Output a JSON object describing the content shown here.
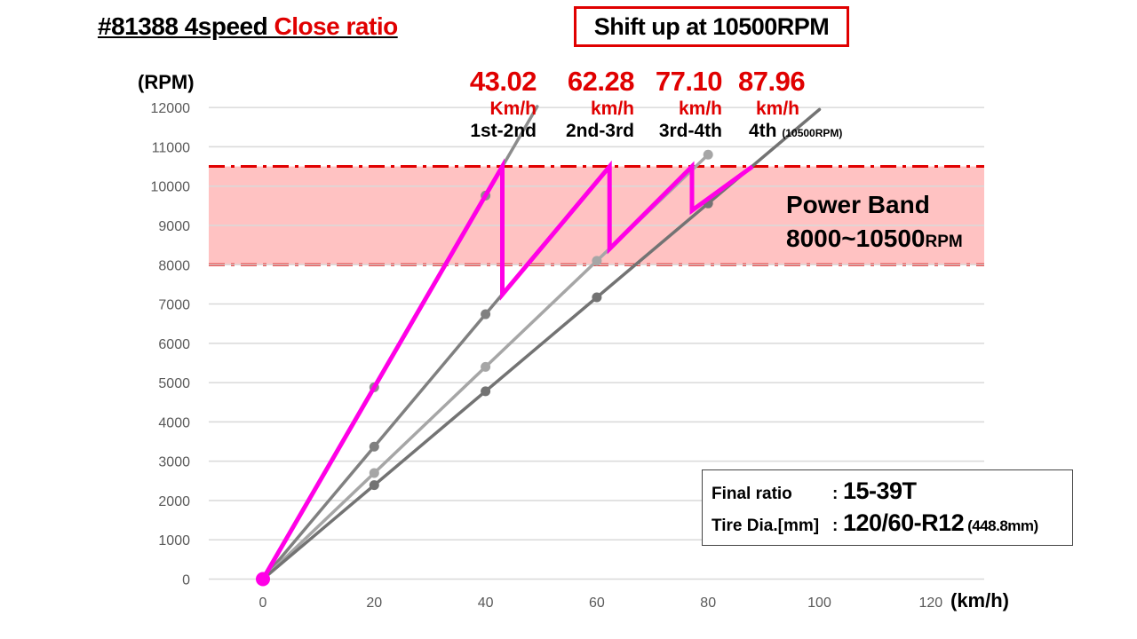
{
  "header": {
    "title_main": "#81388 4speed ",
    "title_accent": "Close ratio",
    "shift_note": "Shift up at 10500RPM"
  },
  "shift_points": [
    {
      "speed": "43.02",
      "unit": "Km/h",
      "gears": "1st-2nd",
      "note": ""
    },
    {
      "speed": "62.28",
      "unit": "km/h",
      "gears": "2nd-3rd",
      "note": ""
    },
    {
      "speed": "77.10",
      "unit": "km/h",
      "gears": "3rd-4th",
      "note": ""
    },
    {
      "speed": "87.96",
      "unit": "km/h",
      "gears": "4th",
      "note": "(10500RPM)"
    }
  ],
  "power_band": {
    "title": "Power Band",
    "range": "8000~10500",
    "unit": "RPM"
  },
  "info": {
    "final_ratio_label": "Final ratio",
    "final_ratio_value": "15-39T",
    "tire_label": "Tire Dia.[mm]",
    "tire_value": "120/60-R12",
    "tire_extra": "(448.8mm)",
    "colon": ":"
  },
  "colors": {
    "accent_red": "#e00000",
    "shift_path": "#ff00e6",
    "power_band_fill": "#ffc2c2",
    "gear_lines": [
      "#8c8c8c",
      "#808080",
      "#a6a6a6",
      "#737373"
    ],
    "grid": "#d9d9d9"
  },
  "chart_data": {
    "type": "line",
    "title": "",
    "xlabel": "(km/h)",
    "ylabel": "(RPM)",
    "xlim": [
      0,
      120
    ],
    "ylim": [
      0,
      12000
    ],
    "x_ticks": [
      0,
      20,
      40,
      60,
      80,
      100,
      120
    ],
    "y_ticks": [
      0,
      1000,
      2000,
      3000,
      4000,
      5000,
      6000,
      7000,
      8000,
      9000,
      10000,
      11000,
      12000
    ],
    "grid": true,
    "series": [
      {
        "name": "",
        "x": [
          0,
          20,
          40,
          60
        ],
        "y": [
          0,
          4880,
          9760,
          14640
        ],
        "marker_x": [
          20,
          40
        ],
        "marker_y": [
          4880,
          9760
        ]
      },
      {
        "name": "",
        "x": [
          0,
          20,
          40,
          60
        ],
        "y": [
          0,
          3370,
          6740,
          10110
        ],
        "marker_x": [
          20,
          40
        ],
        "marker_y": [
          3370,
          6740
        ]
      },
      {
        "name": "",
        "x": [
          0,
          20,
          40,
          60,
          80
        ],
        "y": [
          0,
          2700,
          5400,
          8100,
          10800
        ],
        "marker_x": [
          20,
          40,
          60,
          80
        ],
        "marker_y": [
          2700,
          5400,
          8100,
          10800
        ]
      },
      {
        "name": "",
        "x": [
          0,
          20,
          40,
          60,
          80,
          100
        ],
        "y": [
          0,
          2390,
          4780,
          7170,
          9560,
          11950
        ],
        "marker_x": [
          20,
          40,
          60,
          80
        ],
        "marker_y": [
          2390,
          4780,
          7170,
          9560
        ]
      }
    ],
    "shift_path": {
      "x": [
        0,
        43.02,
        43.02,
        62.28,
        62.28,
        77.1,
        77.1,
        87.96
      ],
      "y": [
        0,
        10500,
        7240,
        10500,
        8400,
        10500,
        9380,
        10500
      ]
    },
    "power_band": {
      "y_min": 8000,
      "y_max": 10500
    }
  }
}
